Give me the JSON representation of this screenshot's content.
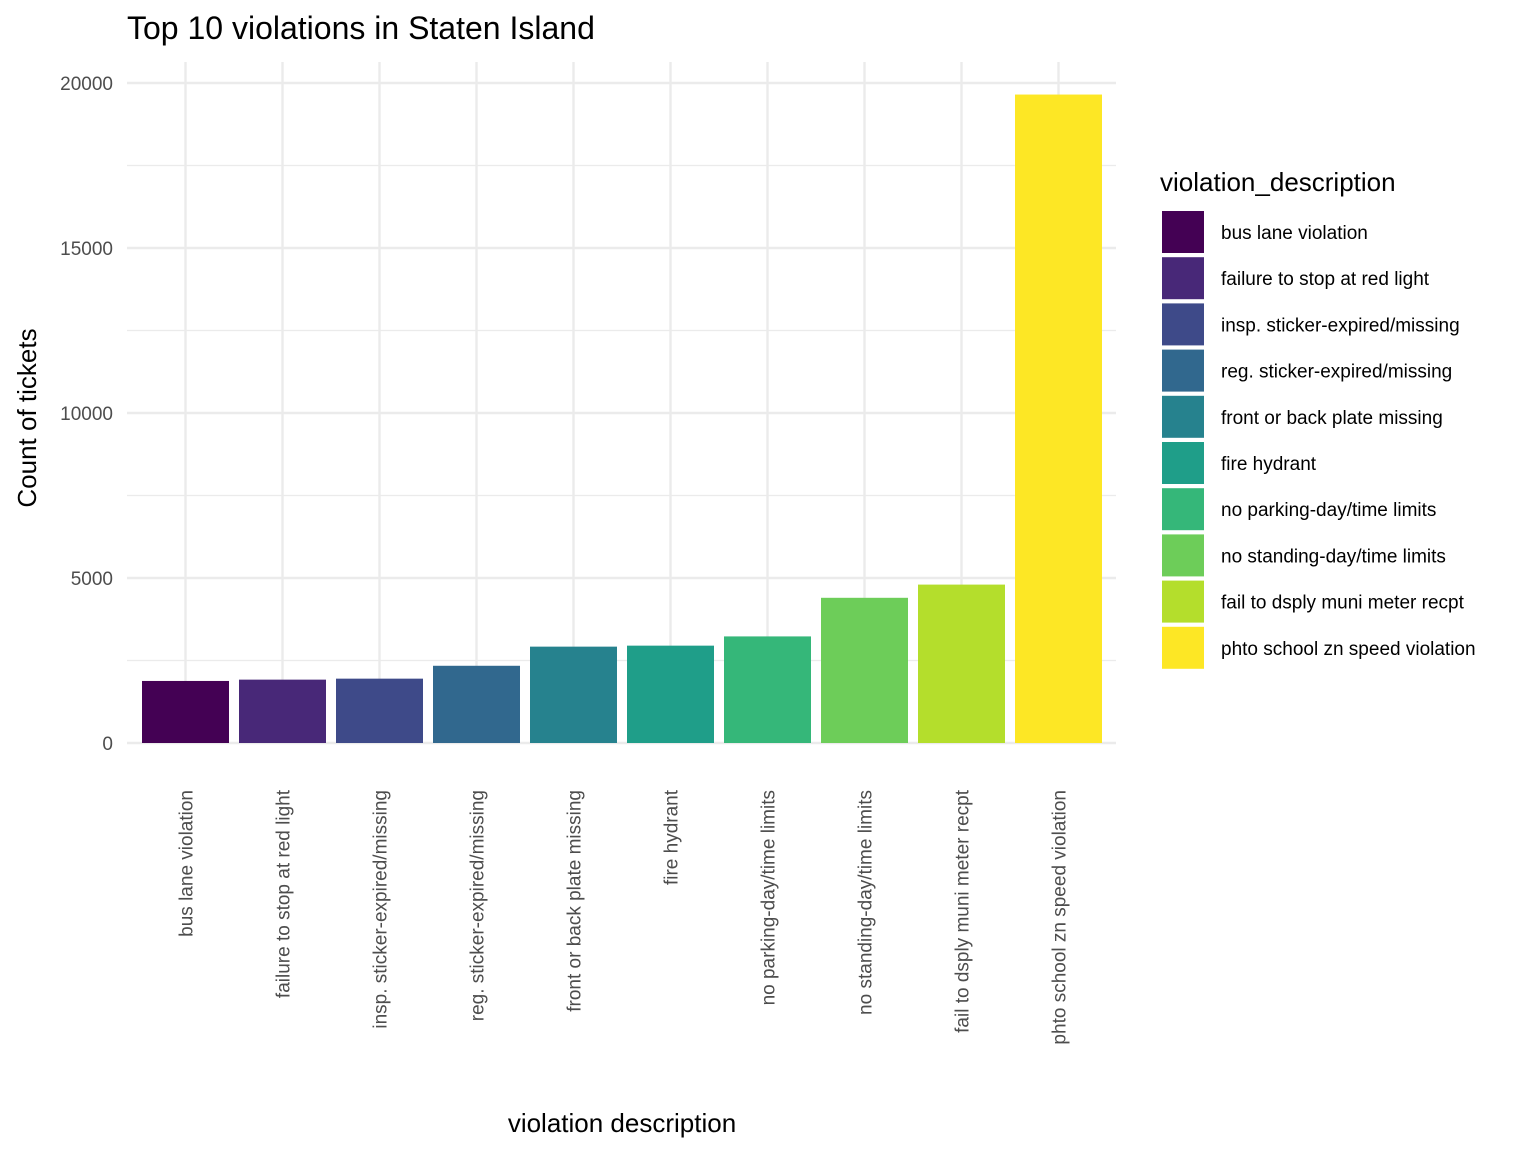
{
  "chart_data": {
    "type": "bar",
    "title": "Top 10 violations in Staten Island",
    "xlabel": "violation description",
    "ylabel": "Count of tickets",
    "ylim": [
      0,
      20600
    ],
    "yticks": [
      0,
      5000,
      10000,
      15000,
      20000
    ],
    "grid": true,
    "legend_position": "right",
    "legend_title": "violation_description",
    "categories": [
      "bus lane violation",
      "failure to stop at red light",
      "insp. sticker-expired/missing",
      "reg. sticker-expired/missing",
      "front or back plate missing",
      "fire hydrant",
      "no parking-day/time limits",
      "no standing-day/time limits",
      "fail to dsply muni meter recpt",
      "phto school zn speed violation"
    ],
    "values": [
      1880,
      1920,
      1950,
      2340,
      2920,
      2950,
      3230,
      4400,
      4800,
      19650
    ],
    "colors": [
      "#440154",
      "#482878",
      "#3E4A89",
      "#31688E",
      "#26828E",
      "#1F9E89",
      "#35B779",
      "#6DCD59",
      "#B4DE2C",
      "#FDE725"
    ]
  }
}
